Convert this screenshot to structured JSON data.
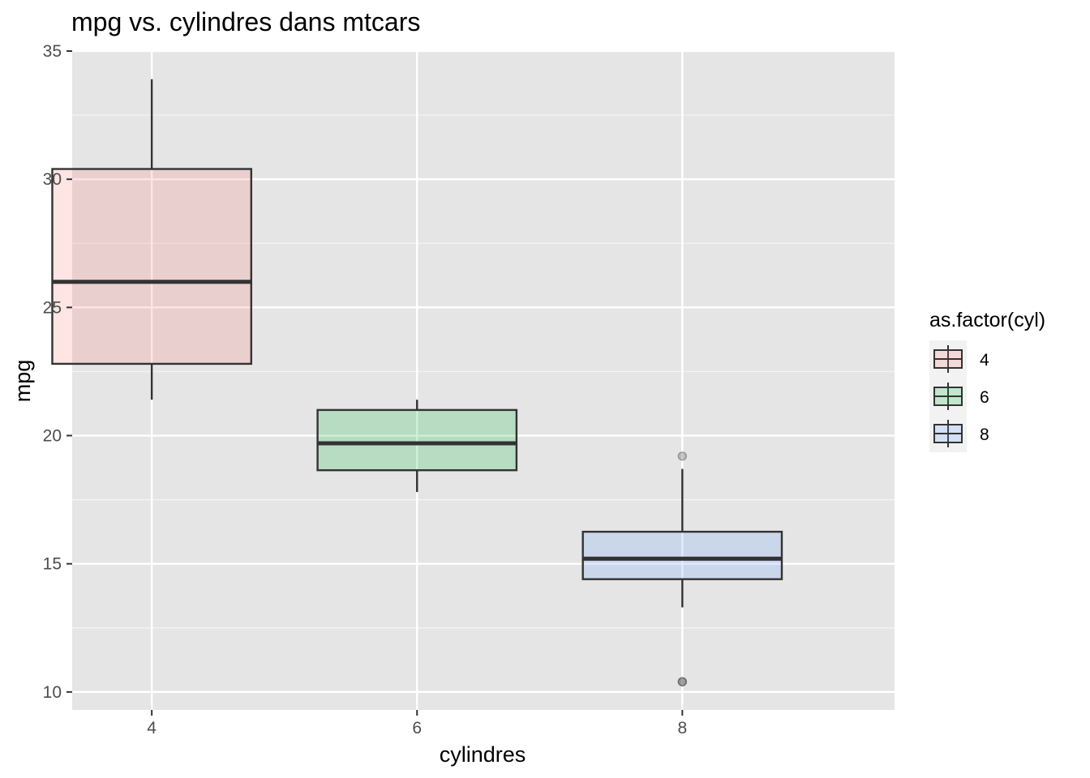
{
  "chart_data": {
    "type": "box",
    "title": "mpg vs. cylindres dans mtcars",
    "xlabel": "cylindres",
    "ylabel": "mpg",
    "ylim": [
      9.3,
      35
    ],
    "xlim": [
      3.4,
      9.6
    ],
    "y_ticks": [
      10,
      15,
      20,
      25,
      30,
      35
    ],
    "grid": true,
    "legend": {
      "title": "as.factor(cyl)",
      "position": "right",
      "entries": [
        "4",
        "6",
        "8"
      ]
    },
    "categories": [
      "4",
      "6",
      "8"
    ],
    "series": [
      {
        "name": "4",
        "x": 4,
        "color": "#F8766D",
        "min": 21.4,
        "q1": 22.8,
        "median": 26.0,
        "q3": 30.4,
        "max": 33.9,
        "outliers": []
      },
      {
        "name": "6",
        "x": 6,
        "color": "#00BA38",
        "min": 17.8,
        "q1": 18.65,
        "median": 19.7,
        "q3": 21.0,
        "max": 21.4,
        "outliers": []
      },
      {
        "name": "8",
        "x": 8,
        "color": "#619CFF",
        "min": 13.3,
        "q1": 14.4,
        "median": 15.2,
        "q3": 16.25,
        "max": 18.7,
        "outliers": [
          19.2,
          10.4,
          10.4
        ]
      }
    ]
  }
}
